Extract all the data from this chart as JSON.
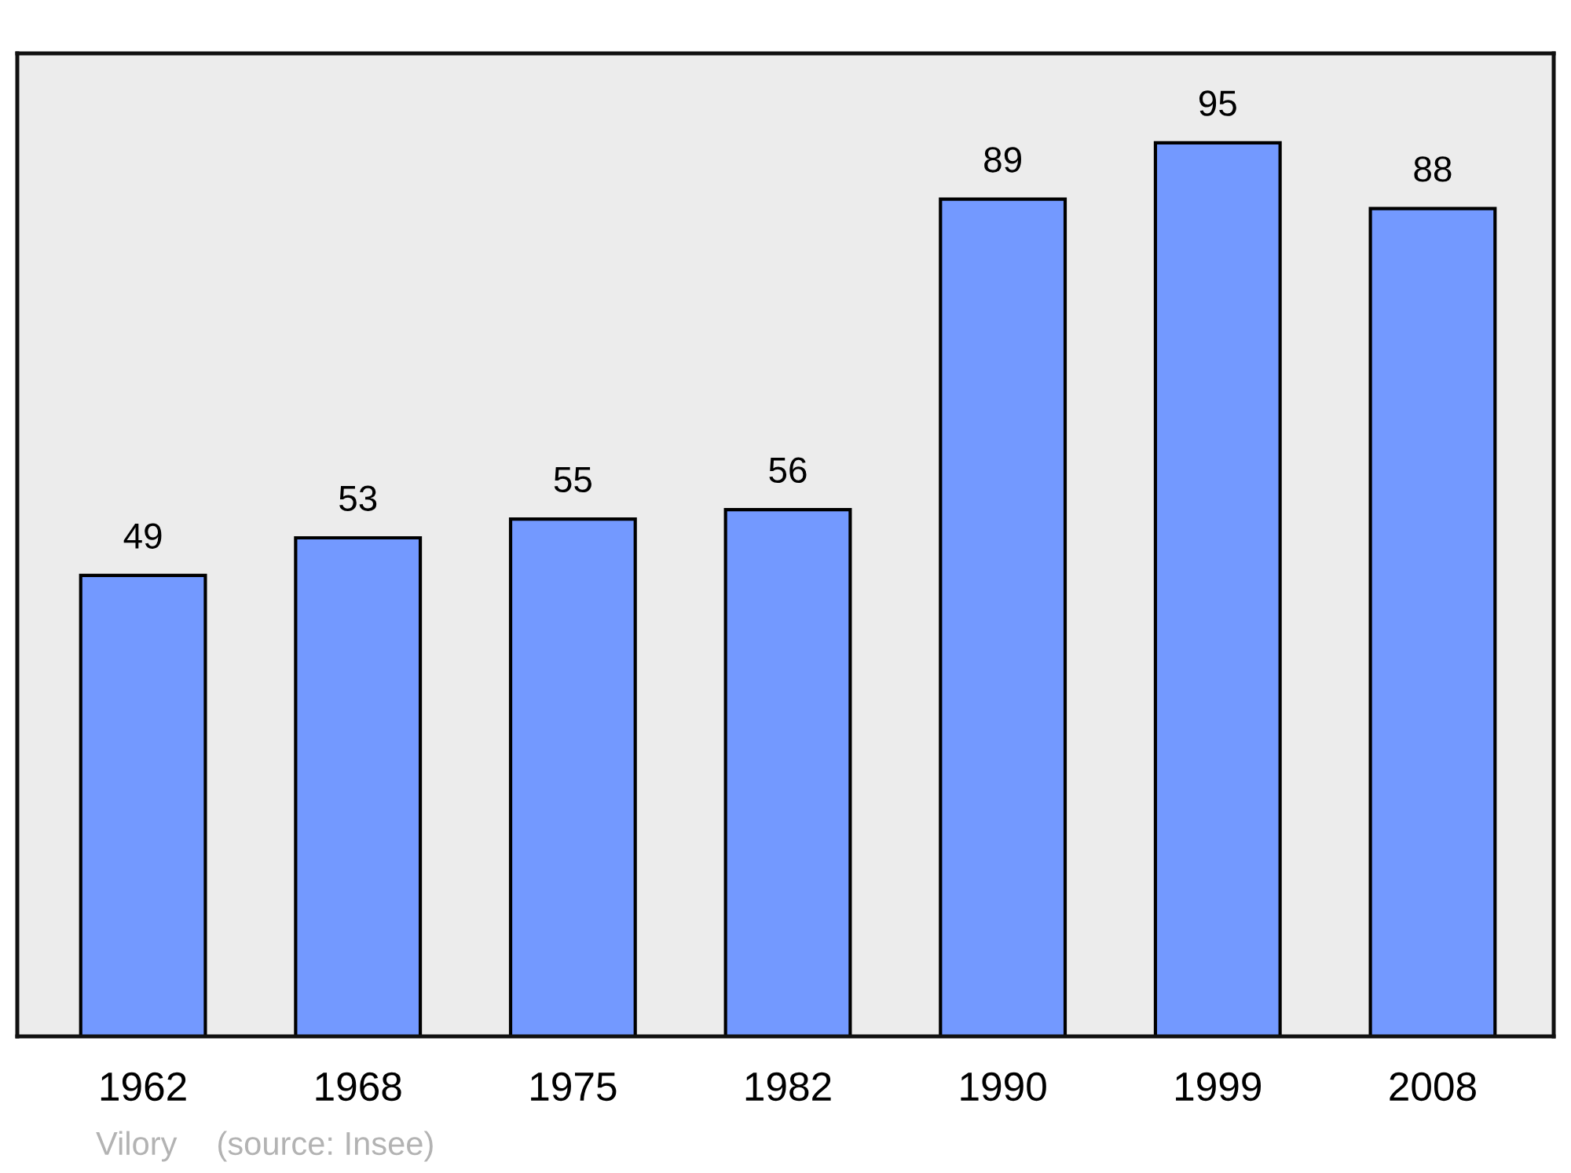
{
  "chart_data": {
    "type": "bar",
    "categories": [
      "1962",
      "1968",
      "1975",
      "1982",
      "1990",
      "1999",
      "2008"
    ],
    "values": [
      49,
      53,
      55,
      56,
      89,
      95,
      88
    ],
    "color": "#7399ff",
    "ylim": [
      0,
      104.5
    ],
    "tick_labels": "x",
    "data_labels": true,
    "annotations": [
      "Vilory",
      "(source: Insee)"
    ]
  }
}
